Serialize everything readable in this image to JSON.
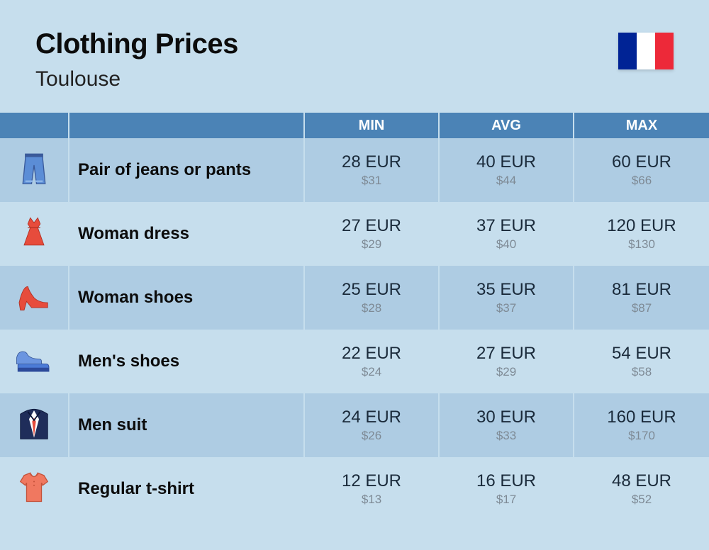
{
  "header": {
    "title": "Clothing Prices",
    "subtitle": "Toulouse",
    "flag_colors": {
      "blue": "#002395",
      "white": "#ffffff",
      "red": "#ed2939"
    }
  },
  "table": {
    "columns": {
      "min": "MIN",
      "avg": "AVG",
      "max": "MAX"
    },
    "header_bg": "#4b83b6",
    "header_fg": "#ffffff",
    "row_even_bg": "#aecce3",
    "row_odd_bg": "#c6deed",
    "eur_color": "#1a2a3a",
    "usd_color": "#7e8a95",
    "rows": [
      {
        "icon": "jeans-icon",
        "name": "Pair of jeans or pants",
        "min_eur": "28 EUR",
        "min_usd": "$31",
        "avg_eur": "40 EUR",
        "avg_usd": "$44",
        "max_eur": "60 EUR",
        "max_usd": "$66"
      },
      {
        "icon": "dress-icon",
        "name": "Woman dress",
        "min_eur": "27 EUR",
        "min_usd": "$29",
        "avg_eur": "37 EUR",
        "avg_usd": "$40",
        "max_eur": "120 EUR",
        "max_usd": "$130"
      },
      {
        "icon": "heel-icon",
        "name": "Woman shoes",
        "min_eur": "25 EUR",
        "min_usd": "$28",
        "avg_eur": "35 EUR",
        "avg_usd": "$37",
        "max_eur": "81 EUR",
        "max_usd": "$87"
      },
      {
        "icon": "sneaker-icon",
        "name": "Men's shoes",
        "min_eur": "22 EUR",
        "min_usd": "$24",
        "avg_eur": "27 EUR",
        "avg_usd": "$29",
        "max_eur": "54 EUR",
        "max_usd": "$58"
      },
      {
        "icon": "suit-icon",
        "name": "Men suit",
        "min_eur": "24 EUR",
        "min_usd": "$26",
        "avg_eur": "30 EUR",
        "avg_usd": "$33",
        "max_eur": "160 EUR",
        "max_usd": "$170"
      },
      {
        "icon": "tshirt-icon",
        "name": "Regular t-shirt",
        "min_eur": "12 EUR",
        "min_usd": "$13",
        "avg_eur": "16 EUR",
        "avg_usd": "$17",
        "max_eur": "48 EUR",
        "max_usd": "$52"
      }
    ]
  },
  "styling": {
    "page_bg": "#c6deed",
    "title_fontsize": 40,
    "subtitle_fontsize": 30,
    "header_fontsize": 20,
    "name_fontsize": 24,
    "eur_fontsize": 24,
    "usd_fontsize": 17
  }
}
